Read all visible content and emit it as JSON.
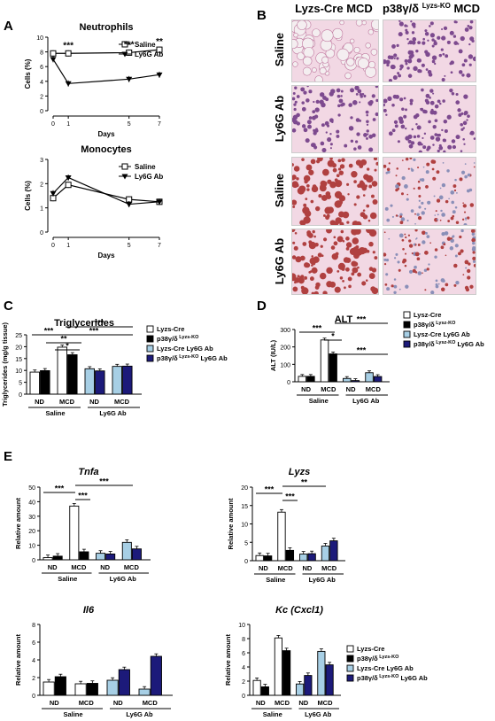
{
  "panel_letters": {
    "A": "A",
    "B": "B",
    "C": "C",
    "D": "D",
    "E": "E"
  },
  "histology": {
    "col1": "Lyzs-Cre MCD",
    "col2_pre": "p38γ/δ ",
    "col2_sup": "Lyzs-KO",
    "col2_post": " MCD",
    "rows": [
      "Saline",
      "Ly6G Ab",
      "Saline",
      "Ly6G Ab"
    ],
    "colors": {
      "he": "#d98fb4",
      "oil": "#b04040",
      "bg": "#f2d8e4"
    }
  },
  "colors": {
    "white": "#ffffff",
    "black": "#000000",
    "lightblue": "#a7cfe5",
    "navy": "#1c1a7a"
  },
  "chart_data": [
    {
      "id": "neutrophils",
      "type": "line",
      "title": "Neutrophils",
      "xlabel": "Days",
      "ylabel": "Cells (%)",
      "x": [
        0,
        1,
        5,
        7
      ],
      "xticks": [
        "0",
        "1",
        "5",
        "7"
      ],
      "ylim": [
        0,
        10
      ],
      "yticks": [
        "0",
        "2",
        "4",
        "6",
        "8",
        "10"
      ],
      "series": [
        {
          "name": "Saline",
          "marker": "square-open",
          "values": [
            7.8,
            7.8,
            7.9,
            8.3
          ]
        },
        {
          "name": "Ly6G Ab",
          "marker": "triangle-down",
          "values": [
            7.0,
            3.7,
            4.3,
            4.9
          ]
        }
      ],
      "annotations": [
        "***",
        "***",
        "**"
      ]
    },
    {
      "id": "monocytes",
      "type": "line",
      "title": "Monocytes",
      "xlabel": "Days",
      "ylabel": "Cells (%)",
      "x": [
        0,
        1,
        5,
        7
      ],
      "xticks": [
        "0",
        "1",
        "5",
        "7"
      ],
      "ylim": [
        0,
        3
      ],
      "yticks": [
        "0",
        "1",
        "2",
        "3"
      ],
      "series": [
        {
          "name": "Saline",
          "marker": "square-open",
          "values": [
            1.4,
            1.95,
            1.35,
            1.25
          ]
        },
        {
          "name": "Ly6G Ab",
          "marker": "triangle-down",
          "values": [
            1.6,
            2.25,
            1.15,
            1.25
          ]
        }
      ]
    },
    {
      "id": "triglycerides",
      "type": "bar",
      "title": "Triglycerides",
      "ylabel": "Triglycerides (mg/g tissue)",
      "ylim": [
        0,
        25
      ],
      "yticks": [
        "0",
        "5",
        "10",
        "15",
        "20",
        "25"
      ],
      "groups": [
        "ND",
        "MCD",
        "ND",
        "MCD"
      ],
      "supergroups": [
        "Saline",
        "Ly6G Ab"
      ],
      "series": [
        {
          "name": "Lyzs-Cre",
          "values": [
            9.3,
            19.8,
            10.7,
            11.7
          ]
        },
        {
          "name": "p38γ/δ Lyzs-KO",
          "values": [
            9.9,
            16.6,
            9.8,
            11.8
          ]
        },
        {
          "name": "Lyzs-Cre Ly6G Ab",
          "values": []
        },
        {
          "name": "p38γ/δ Lyzs-KO Ly6G Ab",
          "values": []
        }
      ],
      "legend": [
        {
          "pre": "Lyzs-Cre",
          "sup": "",
          "post": ""
        },
        {
          "pre": "p38γ/δ",
          "sup": " Lyzs-KO",
          "post": ""
        },
        {
          "pre": "Lyzs-Cre Ly6G Ab",
          "sup": "",
          "post": ""
        },
        {
          "pre": "p38γ/δ",
          "sup": " Lyzs-KO",
          "post": " Ly6G Ab"
        }
      ],
      "sig": [
        "***",
        "**",
        "*",
        "***",
        "***"
      ]
    },
    {
      "id": "alt",
      "type": "bar",
      "title": "ALT",
      "ylabel": "ALT (IU/L)",
      "ylim": [
        0,
        300
      ],
      "yticks": [
        "0",
        "100",
        "200",
        "300"
      ],
      "groups": [
        "ND",
        "MCD",
        "ND",
        "MCD"
      ],
      "supergroups": [
        "Saline",
        "Ly6G Ab"
      ],
      "series": [
        {
          "name": "Lysz-Cre",
          "values": [
            31,
            240,
            19,
            52
          ]
        },
        {
          "name": "p38γ/δ Lysz-KO",
          "values": [
            31,
            160,
            7,
            30
          ]
        }
      ],
      "legend": [
        {
          "pre": "Lysz-Cre",
          "sup": "",
          "post": ""
        },
        {
          "pre": "p38γ/δ",
          "sup": " Lysz-KO",
          "post": ""
        },
        {
          "pre": "Lysz-Cre Ly6G Ab",
          "sup": "",
          "post": ""
        },
        {
          "pre": "p38γ/δ",
          "sup": " Lysz-KO",
          "post": " Ly6G Ab"
        }
      ],
      "sig": [
        "***",
        "*",
        "***",
        "***"
      ]
    },
    {
      "id": "tnfa",
      "type": "bar",
      "title": "Tnfa",
      "ylabel": "Relative amount",
      "ylim": [
        0,
        50
      ],
      "yticks": [
        "0",
        "10",
        "20",
        "30",
        "40",
        "50"
      ],
      "groups": [
        "ND",
        "MCD",
        "ND",
        "MCD"
      ],
      "supergroups": [
        "Saline",
        "Ly6G Ab"
      ],
      "series": [
        {
          "name": "Lyzs-Cre",
          "values": [
            1.5,
            37,
            4.5,
            12
          ]
        },
        {
          "name": "p38γ/δ Lyzs-KO",
          "values": [
            2.5,
            5.5,
            4,
            7.5
          ]
        }
      ],
      "sig": [
        "***",
        "***",
        "***"
      ]
    },
    {
      "id": "lyzs",
      "type": "bar",
      "title": "Lyzs",
      "ylabel": "Relative amount",
      "ylim": [
        0,
        20
      ],
      "yticks": [
        "0",
        "5",
        "10",
        "15",
        "20"
      ],
      "groups": [
        "ND",
        "MCD",
        "ND",
        "MCD"
      ],
      "supergroups": [
        "Saline",
        "Ly6G Ab"
      ],
      "series": [
        {
          "name": "Lyzs-Cre",
          "values": [
            1.4,
            13.2,
            1.8,
            4
          ]
        },
        {
          "name": "p38γ/δ Lyzs-KO",
          "values": [
            1.3,
            2.8,
            1.9,
            5.4
          ]
        }
      ],
      "sig": [
        "***",
        "***",
        "**"
      ]
    },
    {
      "id": "il6",
      "type": "bar",
      "title": "Il6",
      "ylabel": "Relative amount",
      "ylim": [
        0,
        8
      ],
      "yticks": [
        "0",
        "2",
        "4",
        "6",
        "8"
      ],
      "groups": [
        "ND",
        "MCD",
        "ND",
        "MCD"
      ],
      "supergroups": [
        "Saline",
        "Ly6G Ab"
      ],
      "series": [
        {
          "name": "Lyzs-Cre",
          "values": [
            1.5,
            1.3,
            1.7,
            0.7
          ]
        },
        {
          "name": "p38γ/δ Lyzs-KO",
          "values": [
            2.1,
            1.35,
            2.9,
            4.4
          ]
        }
      ]
    },
    {
      "id": "kc",
      "type": "bar",
      "title": "Kc (Cxcl1)",
      "ylabel": "Relative amount",
      "ylim": [
        0,
        10
      ],
      "yticks": [
        "0",
        "2",
        "4",
        "6",
        "8",
        "10"
      ],
      "groups": [
        "ND",
        "MCD",
        "ND",
        "MCD"
      ],
      "supergroups": [
        "Saline",
        "Ly6G Ab"
      ],
      "series": [
        {
          "name": "Lyzs-Cre",
          "values": [
            2.1,
            8.1,
            1.6,
            6.2
          ]
        },
        {
          "name": "p38γ/δ Lyzs-KO",
          "values": [
            1.2,
            6.3,
            2.8,
            4.3
          ]
        }
      ],
      "legend": [
        {
          "pre": "Lyzs-Cre",
          "sup": "",
          "post": ""
        },
        {
          "pre": "p38γ/δ",
          "sup": " Lyzs-KO",
          "post": ""
        },
        {
          "pre": "Lyzs-Cre Ly6G Ab",
          "sup": "",
          "post": ""
        },
        {
          "pre": "p38γ/δ",
          "sup": " Lyzs-KO",
          "post": " Ly6G Ab"
        }
      ]
    }
  ]
}
